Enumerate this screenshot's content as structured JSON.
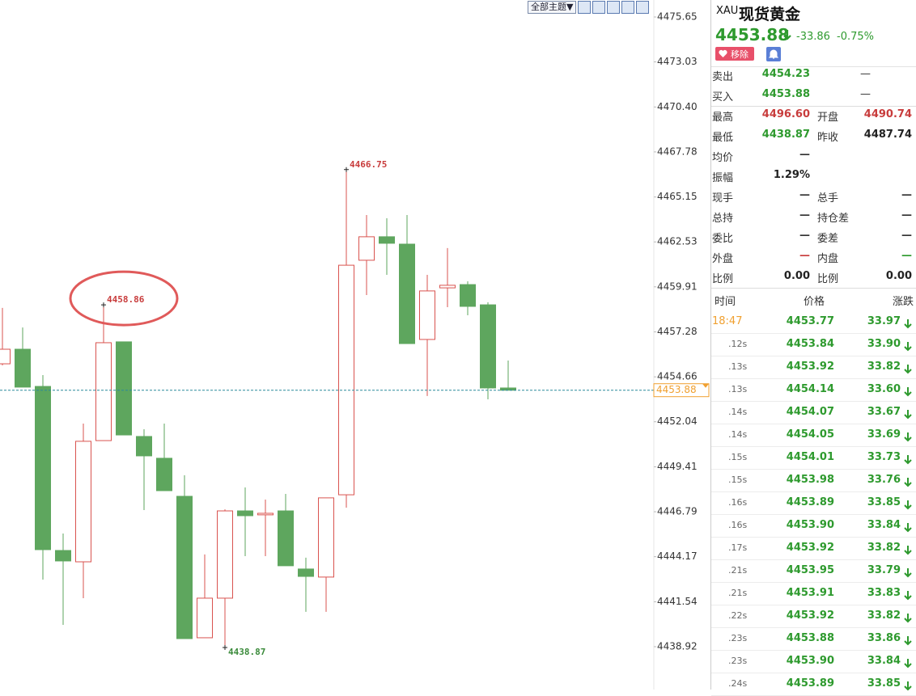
{
  "toolbar": {
    "theme_button": "全部主题▼"
  },
  "chart_data": {
    "type": "candlestick",
    "candles": [
      [
        4455.42,
        4458.68,
        4455.33,
        4456.27
      ],
      [
        4456.27,
        4457.54,
        4454.06,
        4454.06
      ],
      [
        4454.1,
        4454.76,
        4442.83,
        4444.58
      ],
      [
        4444.53,
        4445.52,
        4440.19,
        4443.92
      ],
      [
        4443.87,
        4451.93,
        4441.75,
        4450.9
      ],
      [
        4450.94,
        4458.86,
        4450.94,
        4456.65
      ],
      [
        4456.7,
        4456.7,
        4451.27,
        4451.27
      ],
      [
        4451.18,
        4451.6,
        4446.89,
        4450.05
      ],
      [
        4449.91,
        4451.93,
        4448.02,
        4448.02
      ],
      [
        4447.69,
        4448.92,
        4439.39,
        4439.39
      ],
      [
        4439.44,
        4444.3,
        4439.44,
        4441.75
      ],
      [
        4441.75,
        4446.93,
        4438.87,
        4446.84
      ],
      [
        4446.84,
        4448.21,
        4444.2,
        4446.56
      ],
      [
        4446.61,
        4447.5,
        4444.2,
        4446.7
      ],
      [
        4446.84,
        4447.83,
        4443.64,
        4443.64
      ],
      [
        4443.45,
        4444.11,
        4440.95,
        4443.02
      ],
      [
        4442.98,
        4447.6,
        4440.95,
        4447.6
      ],
      [
        4447.78,
        4466.75,
        4447.03,
        4461.17
      ],
      [
        4461.46,
        4464.1,
        4459.43,
        4462.83
      ],
      [
        4462.83,
        4463.91,
        4460.61,
        4462.45
      ],
      [
        4462.4,
        4464.1,
        4456.6,
        4456.6
      ],
      [
        4456.84,
        4460.61,
        4453.54,
        4459.67
      ],
      [
        4459.85,
        4462.17,
        4458.72,
        4460.0
      ],
      [
        4460.04,
        4460.23,
        4458.25,
        4458.77
      ],
      [
        4458.86,
        4459.01,
        4453.35,
        4454.01
      ],
      [
        4454.01,
        4455.61,
        4453.88,
        4453.88
      ]
    ],
    "up_color": "#d9534f",
    "down_color": "#5ea65e",
    "ylim": [
      4436.42,
      4476.64
    ],
    "yticks": [
      4475.65,
      4473.03,
      {
        "value": 4470.4,
        "label": "4470.40"
      },
      4467.78,
      4465.15,
      4462.53,
      4459.91,
      4457.28,
      4454.66,
      4452.04,
      4449.41,
      4446.79,
      4444.17,
      4441.54,
      4438.92
    ],
    "last_price": 4453.88,
    "last_price_color": "#f0a030",
    "annotations": [
      {
        "candle": 17,
        "at": "high"
      },
      {
        "candle": 5,
        "at": "high",
        "circled": true
      },
      {
        "candle": 11,
        "at": "low"
      }
    ]
  },
  "quote": {
    "symbol": "XAU",
    "name": "现货黄金",
    "price": "4453.88",
    "change": "-33.86",
    "change_pct": "-0.75%",
    "remove_button": "移除"
  },
  "stats": [
    [
      {
        "label": "卖出",
        "value": "4454.23",
        "color": "#2e9a2e"
      },
      {
        "value": "—",
        "color": "#333333"
      }
    ],
    [
      {
        "label": "买入",
        "value": "4453.88",
        "color": "#2e9a2e"
      },
      {
        "value": "—",
        "color": "#333333"
      }
    ],
    [
      {
        "label": "最高",
        "value": "4496.60",
        "color": "#c83c3c"
      },
      {
        "label": "开盘",
        "value": "4490.74",
        "color": "#c83c3c"
      }
    ],
    [
      {
        "label": "最低",
        "value": "4438.87",
        "color": "#2e9a2e"
      },
      {
        "label": "昨收",
        "value": "4487.74",
        "color": "#222222"
      }
    ],
    [
      {
        "label": "均价",
        "value": "—",
        "color": "#333333"
      }
    ],
    [
      {
        "label": "振幅",
        "value": "1.29%",
        "color": "#222222"
      }
    ],
    [
      {
        "label": "现手",
        "value": "—",
        "color": "#333333"
      },
      {
        "label": "总手",
        "value": "—",
        "color": "#333333"
      }
    ],
    [
      {
        "label": "总持",
        "value": "—",
        "color": "#333333"
      },
      {
        "label": "持仓差",
        "value": "—",
        "color": "#333333"
      }
    ],
    [
      {
        "label": "委比",
        "value": "—",
        "color": "#333333"
      },
      {
        "label": "委差",
        "value": "—",
        "color": "#333333"
      }
    ],
    [
      {
        "label": "外盘",
        "value": "—",
        "color": "#c83c3c"
      },
      {
        "label": "内盘",
        "value": "—",
        "color": "#2e9a2e"
      }
    ],
    [
      {
        "label": "比例",
        "value": "0.00",
        "color": "#222222"
      },
      {
        "label": "比例",
        "value": "0.00",
        "color": "#222222"
      }
    ]
  ],
  "ticks_table": {
    "headers": [
      "时间",
      "价格",
      "涨跌"
    ],
    "rows": [
      [
        "18:47",
        "4453.77",
        "33.97"
      ],
      [
        ".12s",
        "4453.84",
        "33.90"
      ],
      [
        ".13s",
        "4453.92",
        "33.82"
      ],
      [
        ".13s",
        "4454.14",
        "33.60"
      ],
      [
        ".14s",
        "4454.07",
        "33.67"
      ],
      [
        ".14s",
        "4454.05",
        "33.69"
      ],
      [
        ".15s",
        "4454.01",
        "33.73"
      ],
      [
        ".15s",
        "4453.98",
        "33.76"
      ],
      [
        ".16s",
        "4453.89",
        "33.85"
      ],
      [
        ".16s",
        "4453.90",
        "33.84"
      ],
      [
        ".17s",
        "4453.92",
        "33.82"
      ],
      [
        ".21s",
        "4453.95",
        "33.79"
      ],
      [
        ".21s",
        "4453.91",
        "33.83"
      ],
      [
        ".22s",
        "4453.92",
        "33.82"
      ],
      [
        ".23s",
        "4453.88",
        "33.86"
      ],
      [
        ".23s",
        "4453.90",
        "33.84"
      ],
      [
        ".24s",
        "4453.89",
        "33.85"
      ]
    ]
  }
}
